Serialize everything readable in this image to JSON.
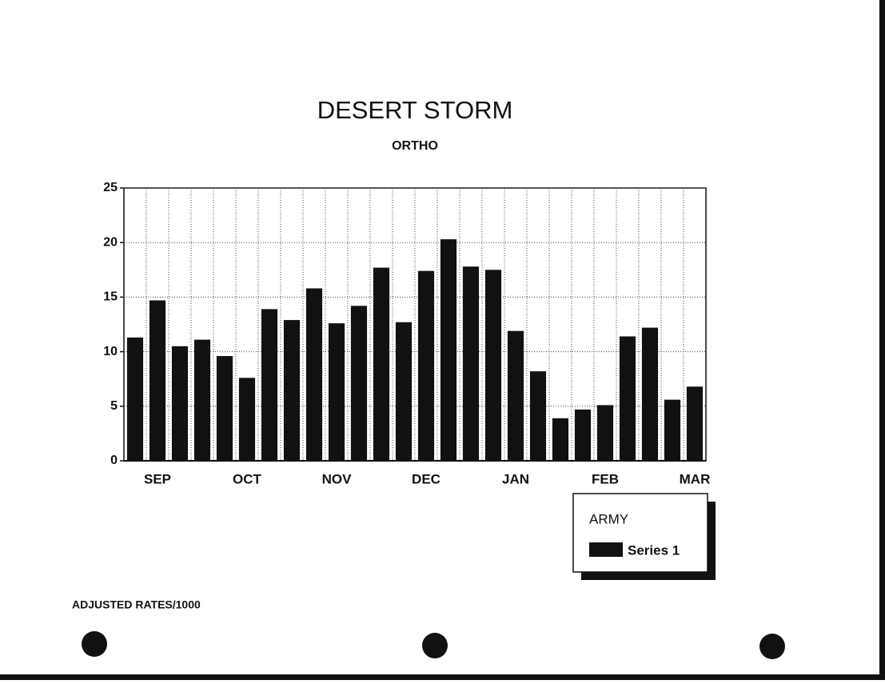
{
  "chart_data": {
    "type": "bar",
    "title": "DESERT STORM",
    "subtitle": "ORTHO",
    "categories": [
      null,
      "SEP",
      null,
      null,
      null,
      "OCT",
      null,
      null,
      null,
      "NOV",
      null,
      null,
      null,
      "DEC",
      null,
      null,
      null,
      "JAN",
      null,
      null,
      null,
      "FEB",
      null,
      null,
      null,
      "MAR"
    ],
    "series": [
      {
        "name": "Series 1",
        "color": "#111111",
        "values": [
          11.3,
          14.7,
          10.5,
          11.1,
          9.6,
          7.6,
          13.9,
          12.9,
          15.8,
          12.6,
          14.2,
          17.7,
          12.7,
          17.4,
          20.3,
          17.8,
          17.5,
          11.9,
          8.2,
          3.9,
          4.7,
          5.1,
          11.4,
          12.2,
          5.6,
          6.8
        ]
      }
    ],
    "legend_title": "ARMY",
    "ylim": [
      0,
      25
    ],
    "yticks": [
      0,
      5,
      10,
      15,
      20,
      25
    ],
    "grid": true,
    "note": "ADJUSTED RATES/1000"
  }
}
